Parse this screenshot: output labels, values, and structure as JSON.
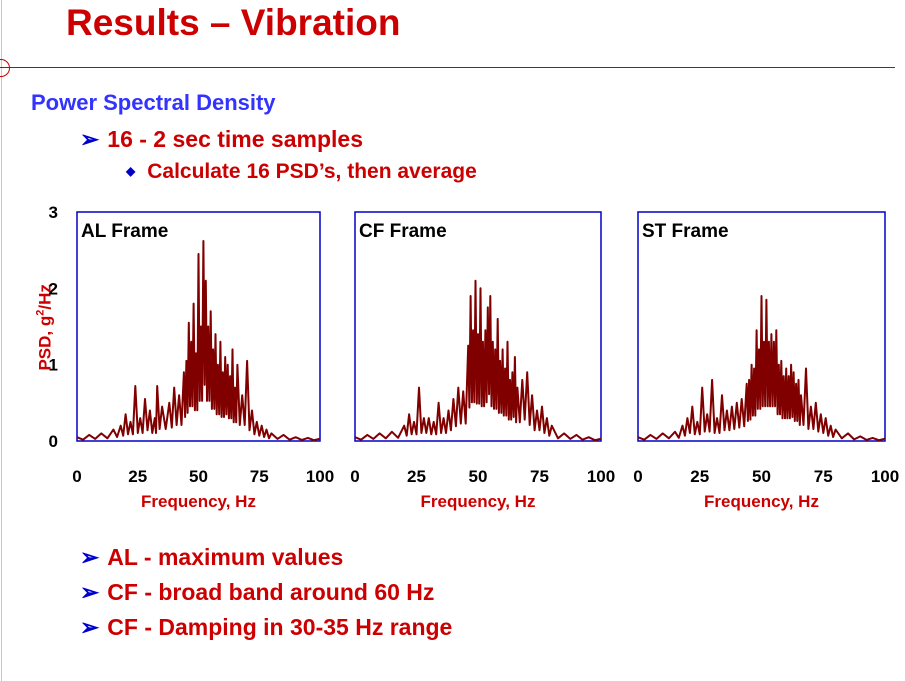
{
  "slide": {
    "title": "Results – Vibration",
    "subtitle": "Power Spectral Density",
    "bullet1": "16 - 2 sec time samples",
    "bullet2": "Calculate 16 PSD’s, then average",
    "conclusions": [
      "AL - maximum values",
      "CF - broad band around 60 Hz",
      "CF - Damping in 30-35 Hz range"
    ]
  },
  "colors": {
    "title": "#cc0000",
    "subtitle": "#3333ff",
    "frame": "#0000cc",
    "series": "#800000",
    "bullet_marker": "#0000cc"
  },
  "axes": {
    "ylabel_prefix": "PSD, g",
    "ylabel_sup": "2",
    "ylabel_suffix": "/Hz",
    "y_ticks": [
      "0",
      "1",
      "2",
      "3"
    ],
    "x_ticks": [
      "0",
      "25",
      "50",
      "75",
      "100"
    ],
    "xlabel": "Frequency, Hz"
  },
  "chart_data": [
    {
      "type": "line",
      "title": "AL Frame",
      "xlabel": "Frequency, Hz",
      "ylabel": "PSD, g2/Hz",
      "xlim": [
        0,
        100
      ],
      "ylim": [
        0,
        3
      ],
      "series": [
        {
          "x": [
            0,
            5,
            10,
            15,
            18,
            20,
            22,
            24,
            26,
            28,
            30,
            32,
            33,
            35,
            38,
            40,
            42,
            44,
            45,
            46,
            47,
            48,
            49,
            50,
            51,
            52,
            53,
            54,
            55,
            56,
            57,
            58,
            59,
            60,
            61,
            62,
            63,
            64,
            65,
            66,
            68,
            70,
            72,
            74,
            76,
            78,
            80,
            85,
            90,
            95,
            100
          ],
          "y": [
            0.05,
            0.08,
            0.1,
            0.15,
            0.2,
            0.35,
            0.25,
            0.72,
            0.3,
            0.55,
            0.4,
            0.3,
            0.72,
            0.45,
            0.5,
            0.7,
            0.6,
            0.9,
            1.05,
            1.55,
            1.3,
            1.8,
            1.15,
            2.45,
            1.5,
            2.62,
            2.1,
            1.5,
            1.7,
            1.2,
            1.4,
            1.0,
            1.3,
            0.9,
            1.1,
            1.0,
            0.85,
            1.2,
            0.7,
            1.0,
            0.6,
            1.05,
            0.4,
            0.25,
            0.2,
            0.15,
            0.1,
            0.08,
            0.05,
            0.04,
            0.03
          ]
        }
      ]
    },
    {
      "type": "line",
      "title": "CF Frame",
      "xlabel": "Frequency, Hz",
      "ylabel": "PSD, g2/Hz",
      "xlim": [
        0,
        100
      ],
      "ylim": [
        0,
        3
      ],
      "series": [
        {
          "x": [
            0,
            5,
            10,
            15,
            20,
            22,
            24,
            26,
            28,
            30,
            32,
            34,
            36,
            38,
            40,
            42,
            44,
            46,
            47,
            48,
            49,
            50,
            51,
            52,
            53,
            54,
            55,
            56,
            57,
            58,
            59,
            60,
            61,
            62,
            63,
            64,
            65,
            66,
            68,
            70,
            72,
            74,
            76,
            78,
            80,
            85,
            90,
            95,
            100
          ],
          "y": [
            0.05,
            0.08,
            0.1,
            0.12,
            0.2,
            0.35,
            0.25,
            0.7,
            0.3,
            0.3,
            0.25,
            0.5,
            0.3,
            0.4,
            0.55,
            0.7,
            0.65,
            1.25,
            1.9,
            1.45,
            2.1,
            1.4,
            2.0,
            1.3,
            1.45,
            1.75,
            1.9,
            1.3,
            1.2,
            1.6,
            1.05,
            1.2,
            0.95,
            1.3,
            0.8,
            0.9,
            1.1,
            0.7,
            0.8,
            0.9,
            0.6,
            0.4,
            0.45,
            0.3,
            0.2,
            0.1,
            0.08,
            0.05,
            0.03
          ]
        }
      ]
    },
    {
      "type": "line",
      "title": "ST Frame",
      "xlabel": "Frequency, Hz",
      "ylabel": "PSD, g2/Hz",
      "xlim": [
        0,
        100
      ],
      "ylim": [
        0,
        3
      ],
      "series": [
        {
          "x": [
            0,
            5,
            10,
            15,
            18,
            20,
            22,
            24,
            26,
            28,
            30,
            32,
            34,
            36,
            38,
            40,
            42,
            44,
            45,
            46,
            47,
            48,
            49,
            50,
            51,
            52,
            53,
            54,
            55,
            56,
            57,
            58,
            59,
            60,
            61,
            62,
            63,
            64,
            65,
            66,
            68,
            70,
            72,
            74,
            76,
            78,
            80,
            85,
            90,
            95,
            100
          ],
          "y": [
            0.05,
            0.08,
            0.1,
            0.12,
            0.2,
            0.3,
            0.45,
            0.25,
            0.7,
            0.35,
            0.8,
            0.3,
            0.6,
            0.4,
            0.45,
            0.5,
            0.55,
            0.75,
            0.8,
            1.0,
            0.95,
            1.45,
            1.2,
            1.9,
            1.3,
            1.85,
            1.3,
            1.4,
            1.3,
            1.45,
            1.0,
            1.05,
            0.85,
            0.95,
            0.85,
            1.0,
            0.9,
            0.75,
            0.8,
            0.6,
            0.95,
            0.45,
            0.5,
            0.35,
            0.3,
            0.2,
            0.15,
            0.1,
            0.06,
            0.04,
            0.03
          ]
        }
      ]
    }
  ]
}
